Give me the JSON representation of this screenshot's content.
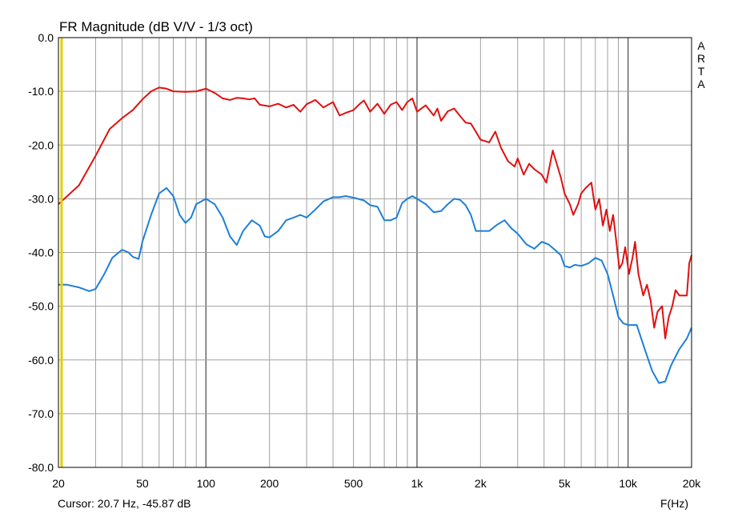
{
  "chart_data": {
    "type": "line",
    "title": "FR Magnitude (dB V/V - 1/3 oct)",
    "xlabel": "F(Hz)",
    "ylabel": "",
    "x_scale": "log",
    "xlim": [
      20,
      20000
    ],
    "ylim": [
      -80,
      0
    ],
    "grid": true,
    "watermark": "ARTA",
    "cursor_readout": "Cursor: 20.7 Hz, -45.87 dB",
    "cursor_frequency_hz": 20.7,
    "cursor_color": "#e0d000",
    "y_ticks": [
      0,
      -10,
      -20,
      -30,
      -40,
      -50,
      -60,
      -70,
      -80
    ],
    "y_tick_labels": [
      "0.0",
      "-10.0",
      "-20.0",
      "-30.0",
      "-40.0",
      "-50.0",
      "-60.0",
      "-70.0",
      "-80.0"
    ],
    "x_ticks": [
      20,
      50,
      100,
      200,
      500,
      1000,
      2000,
      5000,
      10000,
      20000
    ],
    "x_tick_labels": [
      "20",
      "50",
      "100",
      "200",
      "500",
      "1k",
      "2k",
      "5k",
      "10k",
      "20k"
    ],
    "series": [
      {
        "color": "#e01010",
        "points": [
          [
            20,
            -31
          ],
          [
            25,
            -27.5
          ],
          [
            30,
            -22
          ],
          [
            35,
            -17
          ],
          [
            40,
            -15
          ],
          [
            45,
            -13.5
          ],
          [
            50,
            -11.5
          ],
          [
            55,
            -10
          ],
          [
            60,
            -9.3
          ],
          [
            65,
            -9.5
          ],
          [
            70,
            -10
          ],
          [
            80,
            -10.1
          ],
          [
            90,
            -10
          ],
          [
            100,
            -9.5
          ],
          [
            110,
            -10.3
          ],
          [
            120,
            -11.3
          ],
          [
            130,
            -11.6
          ],
          [
            140,
            -11.2
          ],
          [
            150,
            -11.3
          ],
          [
            160,
            -11.5
          ],
          [
            170,
            -11.3
          ],
          [
            180,
            -12.5
          ],
          [
            200,
            -12.8
          ],
          [
            220,
            -12.3
          ],
          [
            240,
            -13
          ],
          [
            260,
            -12.5
          ],
          [
            280,
            -13.8
          ],
          [
            300,
            -12.4
          ],
          [
            330,
            -11.6
          ],
          [
            360,
            -13
          ],
          [
            400,
            -12
          ],
          [
            430,
            -14.5
          ],
          [
            460,
            -14
          ],
          [
            500,
            -13.5
          ],
          [
            530,
            -12.5
          ],
          [
            560,
            -11.7
          ],
          [
            600,
            -13.8
          ],
          [
            650,
            -12.3
          ],
          [
            700,
            -14.2
          ],
          [
            750,
            -12.5
          ],
          [
            800,
            -12
          ],
          [
            850,
            -13.5
          ],
          [
            900,
            -12
          ],
          [
            950,
            -11.3
          ],
          [
            1000,
            -13.8
          ],
          [
            1100,
            -12.6
          ],
          [
            1200,
            -14.5
          ],
          [
            1250,
            -13.2
          ],
          [
            1300,
            -15.5
          ],
          [
            1400,
            -13.7
          ],
          [
            1500,
            -13.2
          ],
          [
            1600,
            -14.6
          ],
          [
            1700,
            -15.8
          ],
          [
            1800,
            -16
          ],
          [
            1900,
            -17.5
          ],
          [
            2000,
            -19
          ],
          [
            2200,
            -19.5
          ],
          [
            2350,
            -17.5
          ],
          [
            2500,
            -20.5
          ],
          [
            2700,
            -23
          ],
          [
            2900,
            -24
          ],
          [
            3000,
            -22.5
          ],
          [
            3200,
            -25.5
          ],
          [
            3400,
            -23.5
          ],
          [
            3600,
            -24.5
          ],
          [
            3900,
            -25.5
          ],
          [
            4100,
            -27
          ],
          [
            4400,
            -21
          ],
          [
            4800,
            -26
          ],
          [
            5000,
            -29
          ],
          [
            5300,
            -31
          ],
          [
            5500,
            -33
          ],
          [
            5800,
            -31
          ],
          [
            6000,
            -29
          ],
          [
            6300,
            -28
          ],
          [
            6700,
            -27
          ],
          [
            7000,
            -32
          ],
          [
            7300,
            -30
          ],
          [
            7600,
            -35
          ],
          [
            7900,
            -32
          ],
          [
            8200,
            -36
          ],
          [
            8500,
            -33
          ],
          [
            8800,
            -38
          ],
          [
            9100,
            -43
          ],
          [
            9400,
            -42
          ],
          [
            9700,
            -39
          ],
          [
            10100,
            -44
          ],
          [
            10500,
            -41
          ],
          [
            10800,
            -38
          ],
          [
            11200,
            -44
          ],
          [
            11800,
            -48
          ],
          [
            12300,
            -46
          ],
          [
            12800,
            -49
          ],
          [
            13300,
            -54
          ],
          [
            13800,
            -51
          ],
          [
            14500,
            -50
          ],
          [
            15000,
            -56
          ],
          [
            15600,
            -52
          ],
          [
            16200,
            -50
          ],
          [
            16800,
            -47
          ],
          [
            17500,
            -48
          ],
          [
            18300,
            -48
          ],
          [
            19000,
            -48
          ],
          [
            19500,
            -42
          ],
          [
            20000,
            -40.5
          ]
        ]
      },
      {
        "color": "#1e7fd8",
        "points": [
          [
            20,
            -46
          ],
          [
            22,
            -46
          ],
          [
            25,
            -46.5
          ],
          [
            28,
            -47.2
          ],
          [
            30,
            -46.8
          ],
          [
            33,
            -44
          ],
          [
            36,
            -41
          ],
          [
            40,
            -39.5
          ],
          [
            43,
            -40
          ],
          [
            45,
            -40.8
          ],
          [
            48,
            -41.2
          ],
          [
            50,
            -38
          ],
          [
            55,
            -33
          ],
          [
            60,
            -29
          ],
          [
            65,
            -28
          ],
          [
            70,
            -29.5
          ],
          [
            75,
            -33
          ],
          [
            80,
            -34.5
          ],
          [
            85,
            -33.5
          ],
          [
            90,
            -31
          ],
          [
            100,
            -30
          ],
          [
            110,
            -31
          ],
          [
            120,
            -33.5
          ],
          [
            130,
            -37
          ],
          [
            140,
            -38.6
          ],
          [
            150,
            -36
          ],
          [
            165,
            -34
          ],
          [
            180,
            -35
          ],
          [
            190,
            -37
          ],
          [
            200,
            -37.2
          ],
          [
            220,
            -36
          ],
          [
            240,
            -34
          ],
          [
            260,
            -33.5
          ],
          [
            280,
            -33
          ],
          [
            300,
            -33.5
          ],
          [
            330,
            -32
          ],
          [
            360,
            -30.5
          ],
          [
            400,
            -29.7
          ],
          [
            430,
            -29.7
          ],
          [
            460,
            -29.5
          ],
          [
            500,
            -29.8
          ],
          [
            560,
            -30.3
          ],
          [
            600,
            -31.2
          ],
          [
            650,
            -31.5
          ],
          [
            700,
            -34
          ],
          [
            750,
            -34
          ],
          [
            800,
            -33.5
          ],
          [
            850,
            -30.8
          ],
          [
            900,
            -30
          ],
          [
            950,
            -29.5
          ],
          [
            1000,
            -30
          ],
          [
            1100,
            -31
          ],
          [
            1200,
            -32.5
          ],
          [
            1300,
            -32.3
          ],
          [
            1400,
            -31
          ],
          [
            1500,
            -30
          ],
          [
            1600,
            -30.2
          ],
          [
            1700,
            -31.2
          ],
          [
            1800,
            -33
          ],
          [
            1900,
            -36
          ],
          [
            2000,
            -36
          ],
          [
            2200,
            -36
          ],
          [
            2400,
            -34.8
          ],
          [
            2600,
            -34
          ],
          [
            2800,
            -35.5
          ],
          [
            3000,
            -36.5
          ],
          [
            3300,
            -38.5
          ],
          [
            3600,
            -39.3
          ],
          [
            3900,
            -38
          ],
          [
            4200,
            -38.5
          ],
          [
            4500,
            -39.5
          ],
          [
            4800,
            -40.5
          ],
          [
            5000,
            -42.5
          ],
          [
            5300,
            -42.8
          ],
          [
            5600,
            -42.3
          ],
          [
            6000,
            -42.5
          ],
          [
            6500,
            -42
          ],
          [
            7000,
            -41
          ],
          [
            7500,
            -41.5
          ],
          [
            8000,
            -44
          ],
          [
            8500,
            -48
          ],
          [
            9000,
            -52
          ],
          [
            9500,
            -53.2
          ],
          [
            10000,
            -53.5
          ],
          [
            11000,
            -53.5
          ],
          [
            12000,
            -58
          ],
          [
            13000,
            -62
          ],
          [
            14000,
            -64.3
          ],
          [
            15000,
            -64
          ],
          [
            16000,
            -61
          ],
          [
            17500,
            -58
          ],
          [
            19000,
            -56
          ],
          [
            20000,
            -54
          ]
        ]
      }
    ]
  }
}
